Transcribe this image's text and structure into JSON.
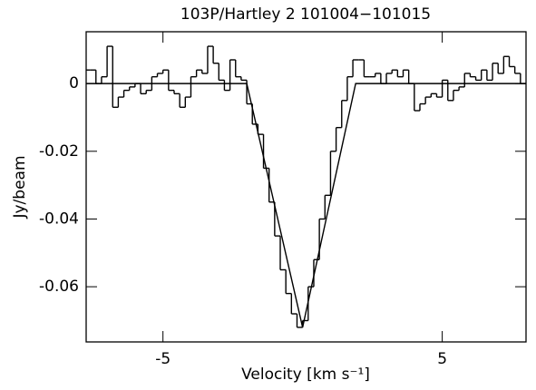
{
  "chart_data": {
    "type": "line",
    "title": "103P/Hartley 2    101004−101015",
    "x_label": "Velocity [km s⁻¹]",
    "y_label": "Jy/beam",
    "xlim": [
      -7.75,
      8
    ],
    "ylim": [
      -0.0763,
      0.0153
    ],
    "xticks": [
      -5,
      5
    ],
    "yticks": [
      0,
      -0.02,
      -0.04,
      -0.06
    ],
    "series": [
      {
        "step": true,
        "color": "#000000",
        "x": [
          -7.7,
          -7.5,
          -7.3,
          -7.1,
          -6.9,
          -6.7,
          -6.5,
          -6.3,
          -6.1,
          -5.9,
          -5.7,
          -5.5,
          -5.3,
          -5.1,
          -4.9,
          -4.7,
          -4.5,
          -4.3,
          -4.1,
          -3.9,
          -3.7,
          -3.5,
          -3.3,
          -3.1,
          -2.9,
          -2.7,
          -2.5,
          -2.3,
          -2.1,
          -1.9,
          -1.7,
          -1.5,
          -1.3,
          -1.1,
          -0.9,
          -0.7,
          -0.5,
          -0.3,
          -0.1,
          0.1,
          0.3,
          0.5,
          0.7,
          0.9,
          1.1,
          1.3,
          1.5,
          1.7,
          1.9,
          2.1,
          2.3,
          2.5,
          2.7,
          2.9,
          3.1,
          3.3,
          3.5,
          3.7,
          3.9,
          4.1,
          4.3,
          4.5,
          4.7,
          4.9,
          5.1,
          5.3,
          5.5,
          5.7,
          5.9,
          6.1,
          6.3,
          6.5,
          6.7,
          6.9,
          7.1,
          7.3,
          7.5,
          7.7,
          7.9
        ],
        "values": [
          0.004,
          0.004,
          0.0,
          0.002,
          0.011,
          -0.007,
          -0.004,
          -0.002,
          -0.001,
          0.0,
          -0.003,
          -0.002,
          0.002,
          0.003,
          0.004,
          -0.002,
          -0.003,
          -0.007,
          -0.004,
          0.002,
          0.004,
          0.003,
          0.011,
          0.006,
          0.001,
          -0.002,
          0.007,
          0.002,
          0.001,
          -0.006,
          -0.012,
          -0.015,
          -0.025,
          -0.035,
          -0.045,
          -0.055,
          -0.062,
          -0.068,
          -0.072,
          -0.07,
          -0.06,
          -0.052,
          -0.04,
          -0.033,
          -0.02,
          -0.013,
          -0.005,
          0.002,
          0.007,
          0.007,
          0.002,
          0.002,
          0.003,
          0.0,
          0.003,
          0.004,
          0.002,
          0.004,
          0.0,
          -0.008,
          -0.006,
          -0.004,
          -0.003,
          -0.004,
          0.001,
          -0.005,
          -0.002,
          -0.001,
          0.003,
          0.002,
          0.001,
          0.004,
          0.001,
          0.006,
          0.003,
          0.008,
          0.005,
          0.003,
          0.0
        ]
      },
      {
        "step": false,
        "color": "#000000",
        "x": [
          -7.75,
          -2.0,
          0.0,
          1.9,
          8
        ],
        "values": [
          0,
          0,
          -0.072,
          0,
          0
        ]
      }
    ]
  }
}
